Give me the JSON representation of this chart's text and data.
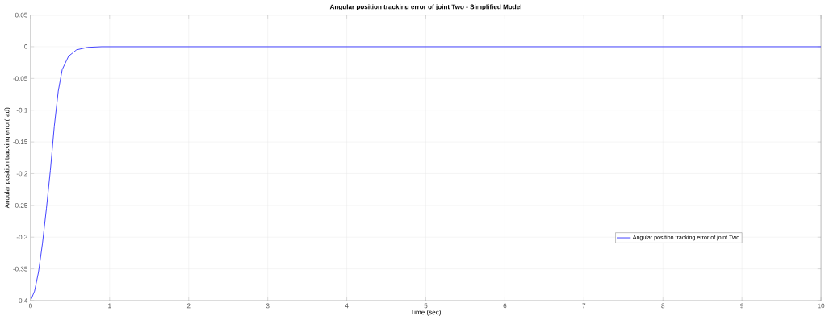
{
  "chart_data": {
    "type": "line",
    "title": "Angular position tracking error of joint Two - Simplified Model",
    "xlabel": "Time (sec)",
    "ylabel": "Angular position tracking error(rad)",
    "series": [
      {
        "name": "Angular position tracking error of joint Two",
        "color": "#3333ff",
        "x": [
          0,
          0.05,
          0.1,
          0.15,
          0.2,
          0.25,
          0.3,
          0.35,
          0.4,
          0.48,
          0.58,
          0.72,
          0.9,
          10
        ],
        "values": [
          -0.4,
          -0.385,
          -0.355,
          -0.31,
          -0.255,
          -0.195,
          -0.125,
          -0.07,
          -0.036,
          -0.015,
          -0.005,
          -0.001,
          0,
          0
        ]
      }
    ],
    "xlim": [
      0,
      10
    ],
    "ylim": [
      -0.4,
      0.05
    ],
    "xticks": [
      0,
      1,
      2,
      3,
      4,
      5,
      6,
      7,
      8,
      9,
      10
    ],
    "yticks": [
      -0.4,
      -0.35,
      -0.3,
      -0.25,
      -0.2,
      -0.15,
      -0.1,
      -0.05,
      0,
      0.05
    ],
    "grid": true,
    "legend": "right",
    "line_style": "solid"
  }
}
